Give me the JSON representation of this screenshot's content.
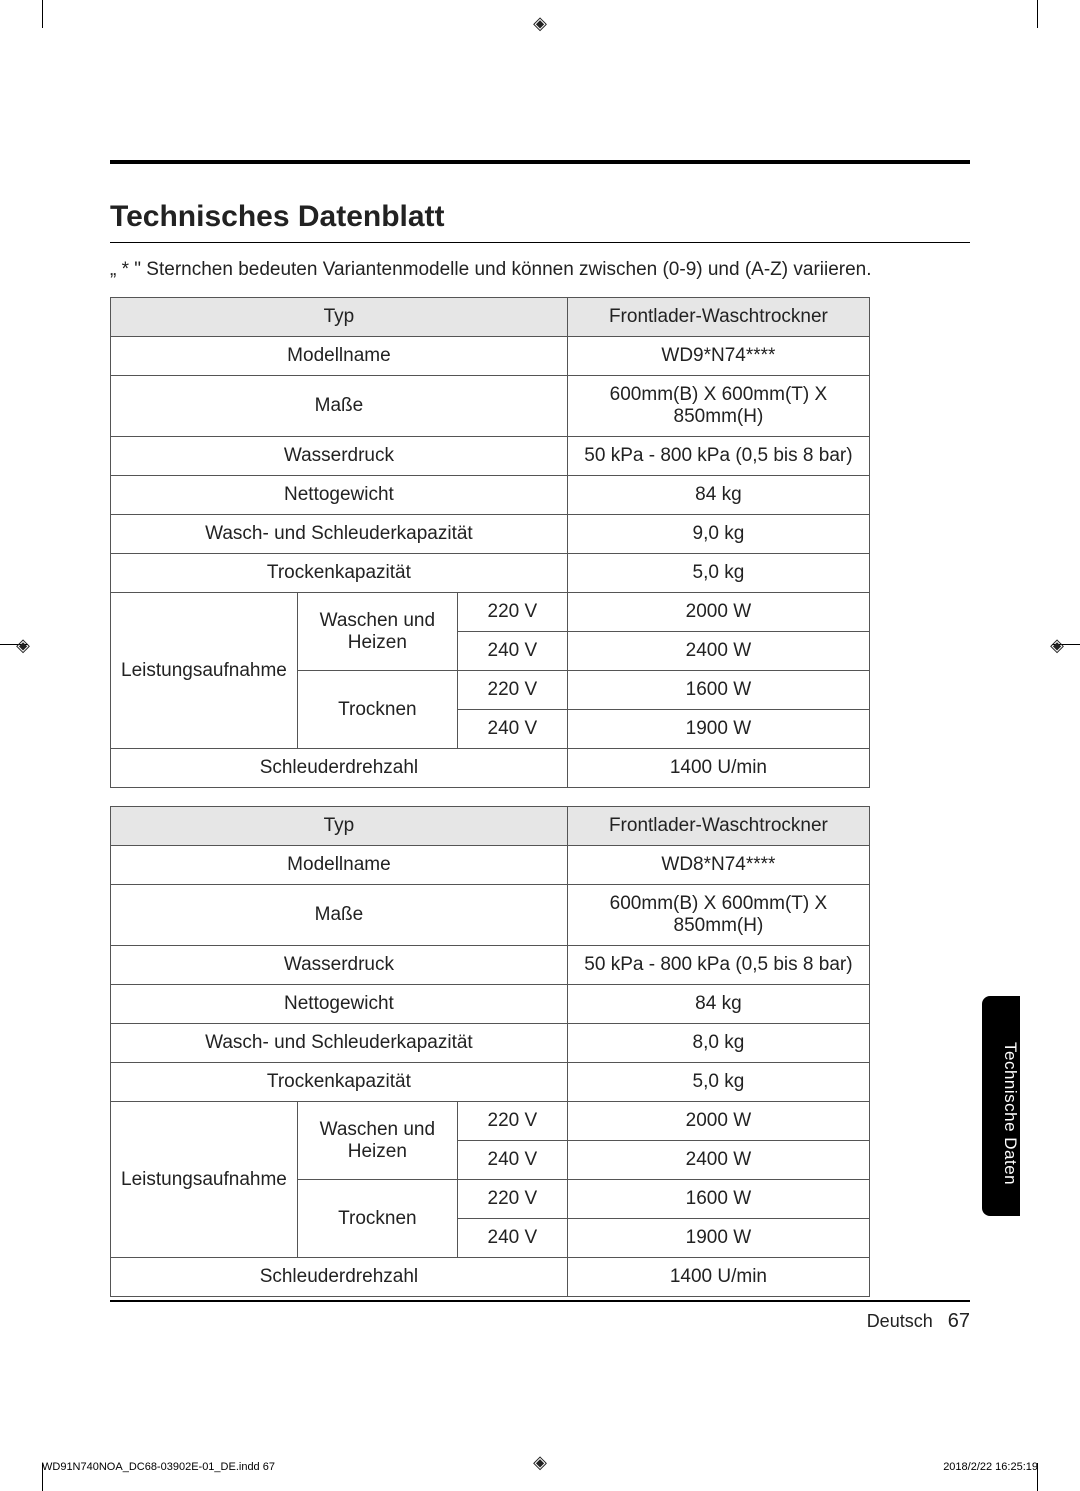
{
  "title": "Technisches Datenblatt",
  "note": "„ * \" Sternchen bedeuten Variantenmodelle und können zwischen (0-9) und (A-Z) variieren.",
  "labels": {
    "type": "Typ",
    "modelName": "Modellname",
    "dimensions": "Maße",
    "waterPressure": "Wasserdruck",
    "netWeight": "Nettogewicht",
    "washSpinCap": "Wasch- und Schleuderkapazität",
    "dryCap": "Trockenkapazität",
    "power": "Leistungsaufnahme",
    "washHeat": "Waschen und Heizen",
    "dry": "Trocknen",
    "spin": "Schleuderdrehzahl"
  },
  "voltages": {
    "v220": "220 V",
    "v240": "240 V"
  },
  "tables": [
    {
      "typeValue": "Frontlader-Waschtrockner",
      "modelValue": "WD9*N74****",
      "dimensionsValue": "600mm(B) X 600mm(T) X 850mm(H)",
      "waterPressureValue": "50 kPa - 800 kPa (0,5 bis 8 bar)",
      "netWeightValue": "84 kg",
      "washSpinCapValue": "9,0 kg",
      "dryCapValue": "5,0 kg",
      "power": {
        "washHeat220": "2000 W",
        "washHeat240": "2400 W",
        "dry220": "1600 W",
        "dry240": "1900 W"
      },
      "spinValue": "1400 U/min"
    },
    {
      "typeValue": "Frontlader-Waschtrockner",
      "modelValue": "WD8*N74****",
      "dimensionsValue": "600mm(B) X 600mm(T) X 850mm(H)",
      "waterPressureValue": "50 kPa - 800 kPa (0,5 bis 8 bar)",
      "netWeightValue": "84 kg",
      "washSpinCapValue": "8,0 kg",
      "dryCapValue": "5,0 kg",
      "power": {
        "washHeat220": "2000 W",
        "washHeat240": "2400 W",
        "dry220": "1600 W",
        "dry240": "1900 W"
      },
      "spinValue": "1400 U/min"
    }
  ],
  "sideTab": "Technische Daten",
  "footer": {
    "lang": "Deutsch",
    "pageNum": "67"
  },
  "indd": {
    "file": "WD91N740NOA_DC68-03902E-01_DE.indd   67",
    "timestamp": "2018/2/22   16:25:19"
  },
  "colors": {
    "pageBg": "#ffffff",
    "headerRowBg": "#e6e6e6",
    "border": "#555555",
    "text": "#222222",
    "tabBg": "#000000",
    "tabText": "#ffffff"
  }
}
